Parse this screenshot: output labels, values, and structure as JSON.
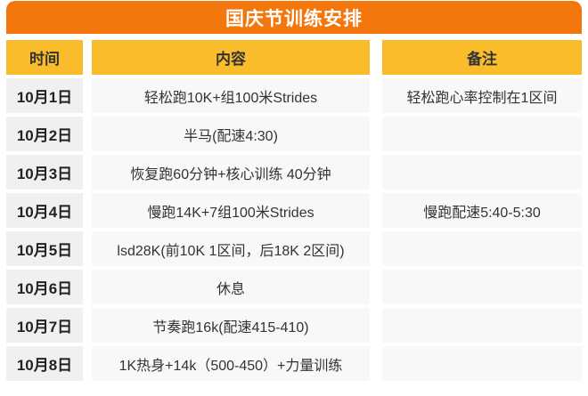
{
  "title": "国庆节训练安排",
  "colors": {
    "accent_orange": "#F4770E",
    "header_amber": "#FBBC2B",
    "date_cell_gray": "#F0F0F1",
    "body_cell_gray": "#F7F8F8",
    "text_dark": "#333333",
    "title_text_white": "#FFFFFF"
  },
  "table": {
    "headers": [
      "时间",
      "内容",
      "备注"
    ],
    "rows": [
      {
        "date": "10月1日",
        "content": "轻松跑10K+组100米Strides",
        "note": "轻松跑心率控制在1区间"
      },
      {
        "date": "10月2日",
        "content": "半马(配速4:30)",
        "note": ""
      },
      {
        "date": "10月3日",
        "content": "恢复跑60分钟+核心训练 40分钟",
        "note": ""
      },
      {
        "date": "10月4日",
        "content": "慢跑14K+7组100米Strides",
        "note": "慢跑配速5:40-5:30"
      },
      {
        "date": "10月5日",
        "content": "lsd28K(前10K 1区间，后18K 2区间)",
        "note": ""
      },
      {
        "date": "10月6日",
        "content": "休息",
        "note": ""
      },
      {
        "date": "10月7日",
        "content": "节奏跑16k(配速415-410)",
        "note": ""
      },
      {
        "date": "10月8日",
        "content": "1K热身+14k（500-450）+力量训练",
        "note": ""
      }
    ]
  }
}
